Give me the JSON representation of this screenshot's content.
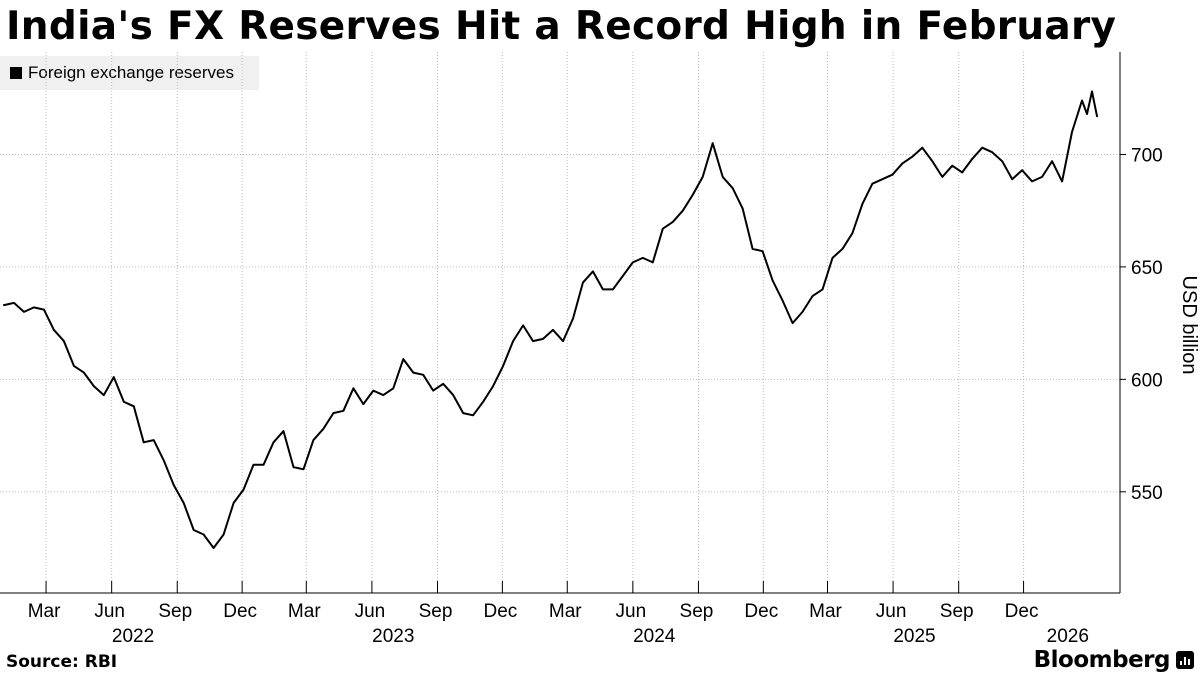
{
  "title": "India's FX Reserves Hit a Record High in February",
  "legend": {
    "label": "Foreign exchange reserves"
  },
  "source": "Source: RBI",
  "brand": "Bloomberg",
  "colors": {
    "line": "#000000",
    "grid": "#bdbdbd",
    "legend_bg": "#f0f0f0"
  },
  "chart_data": {
    "type": "line",
    "ylabel": "USD billion",
    "ylim": [
      505,
      750
    ],
    "yticks": [
      550,
      600,
      650,
      700
    ],
    "grid": true,
    "legend_position": "top-left",
    "month_ticks": [
      {
        "label": "Mar",
        "x": "2022-03-01"
      },
      {
        "label": "Jun",
        "x": "2022-06-01"
      },
      {
        "label": "Sep",
        "x": "2022-09-01"
      },
      {
        "label": "Dec",
        "x": "2022-12-01"
      },
      {
        "label": "Mar",
        "x": "2023-03-01"
      },
      {
        "label": "Jun",
        "x": "2023-06-01"
      },
      {
        "label": "Sep",
        "x": "2023-09-01"
      },
      {
        "label": "Dec",
        "x": "2023-12-01"
      },
      {
        "label": "Mar",
        "x": "2024-03-01"
      },
      {
        "label": "Jun",
        "x": "2024-06-01"
      },
      {
        "label": "Sep",
        "x": "2024-09-01"
      },
      {
        "label": "Dec",
        "x": "2024-12-01"
      },
      {
        "label": "Mar",
        "x": "2025-03-01"
      },
      {
        "label": "Jun",
        "x": "2025-06-01"
      },
      {
        "label": "Sep",
        "x": "2025-09-01"
      },
      {
        "label": "Dec",
        "x": "2025-12-01"
      }
    ],
    "year_ticks": [
      {
        "label": "2022",
        "x": "2022-07-01"
      },
      {
        "label": "2023",
        "x": "2023-07-01"
      },
      {
        "label": "2024",
        "x": "2024-07-01"
      },
      {
        "label": "2025",
        "x": "2025-07-01"
      },
      {
        "label": "2026",
        "x": "2026-02-01"
      }
    ],
    "series": [
      {
        "values": [
          [
            "2022-01-01",
            633
          ],
          [
            "2022-01-15",
            634
          ],
          [
            "2022-01-29",
            630
          ],
          [
            "2022-02-12",
            632
          ],
          [
            "2022-02-26",
            631
          ],
          [
            "2022-03-12",
            622
          ],
          [
            "2022-03-26",
            617
          ],
          [
            "2022-04-09",
            606
          ],
          [
            "2022-04-23",
            603
          ],
          [
            "2022-05-07",
            597
          ],
          [
            "2022-05-21",
            593
          ],
          [
            "2022-06-04",
            601
          ],
          [
            "2022-06-18",
            590
          ],
          [
            "2022-07-02",
            588
          ],
          [
            "2022-07-16",
            572
          ],
          [
            "2022-07-30",
            573
          ],
          [
            "2022-08-13",
            564
          ],
          [
            "2022-08-27",
            553
          ],
          [
            "2022-09-10",
            545
          ],
          [
            "2022-09-24",
            533
          ],
          [
            "2022-10-08",
            531
          ],
          [
            "2022-10-22",
            525
          ],
          [
            "2022-11-05",
            531
          ],
          [
            "2022-11-19",
            545
          ],
          [
            "2022-12-03",
            551
          ],
          [
            "2022-12-17",
            562
          ],
          [
            "2022-12-31",
            562
          ],
          [
            "2023-01-14",
            572
          ],
          [
            "2023-01-28",
            577
          ],
          [
            "2023-02-11",
            561
          ],
          [
            "2023-02-25",
            560
          ],
          [
            "2023-03-11",
            573
          ],
          [
            "2023-03-25",
            578
          ],
          [
            "2023-04-08",
            585
          ],
          [
            "2023-04-22",
            586
          ],
          [
            "2023-05-06",
            596
          ],
          [
            "2023-05-20",
            589
          ],
          [
            "2023-06-03",
            595
          ],
          [
            "2023-06-17",
            593
          ],
          [
            "2023-07-01",
            596
          ],
          [
            "2023-07-15",
            609
          ],
          [
            "2023-07-29",
            603
          ],
          [
            "2023-08-12",
            602
          ],
          [
            "2023-08-26",
            595
          ],
          [
            "2023-09-09",
            598
          ],
          [
            "2023-09-23",
            593
          ],
          [
            "2023-10-07",
            585
          ],
          [
            "2023-10-21",
            584
          ],
          [
            "2023-11-04",
            590
          ],
          [
            "2023-11-18",
            597
          ],
          [
            "2023-12-02",
            606
          ],
          [
            "2023-12-16",
            617
          ],
          [
            "2023-12-30",
            624
          ],
          [
            "2024-01-13",
            617
          ],
          [
            "2024-01-27",
            618
          ],
          [
            "2024-02-10",
            622
          ],
          [
            "2024-02-24",
            617
          ],
          [
            "2024-03-09",
            627
          ],
          [
            "2024-03-23",
            643
          ],
          [
            "2024-04-06",
            648
          ],
          [
            "2024-04-20",
            640
          ],
          [
            "2024-05-04",
            640
          ],
          [
            "2024-05-18",
            646
          ],
          [
            "2024-06-01",
            652
          ],
          [
            "2024-06-15",
            654
          ],
          [
            "2024-06-29",
            652
          ],
          [
            "2024-07-13",
            667
          ],
          [
            "2024-07-27",
            670
          ],
          [
            "2024-08-10",
            675
          ],
          [
            "2024-08-24",
            682
          ],
          [
            "2024-09-07",
            690
          ],
          [
            "2024-09-21",
            705
          ],
          [
            "2024-10-05",
            690
          ],
          [
            "2024-10-19",
            685
          ],
          [
            "2024-11-02",
            676
          ],
          [
            "2024-11-16",
            658
          ],
          [
            "2024-11-30",
            657
          ],
          [
            "2024-12-14",
            644
          ],
          [
            "2024-12-28",
            635
          ],
          [
            "2025-01-11",
            625
          ],
          [
            "2025-01-25",
            630
          ],
          [
            "2025-02-08",
            637
          ],
          [
            "2025-02-22",
            640
          ],
          [
            "2025-03-08",
            654
          ],
          [
            "2025-03-22",
            658
          ],
          [
            "2025-04-05",
            665
          ],
          [
            "2025-04-19",
            678
          ],
          [
            "2025-05-03",
            687
          ],
          [
            "2025-05-17",
            689
          ],
          [
            "2025-05-31",
            691
          ],
          [
            "2025-06-14",
            696
          ],
          [
            "2025-06-28",
            699
          ],
          [
            "2025-07-12",
            703
          ],
          [
            "2025-07-26",
            697
          ],
          [
            "2025-08-09",
            690
          ],
          [
            "2025-08-23",
            695
          ],
          [
            "2025-09-06",
            692
          ],
          [
            "2025-09-20",
            698
          ],
          [
            "2025-10-04",
            703
          ],
          [
            "2025-10-18",
            701
          ],
          [
            "2025-11-01",
            697
          ],
          [
            "2025-11-15",
            689
          ],
          [
            "2025-11-29",
            693
          ],
          [
            "2025-12-13",
            688
          ],
          [
            "2025-12-27",
            690
          ],
          [
            "2026-01-10",
            697
          ],
          [
            "2026-01-24",
            688
          ],
          [
            "2026-02-07",
            710
          ],
          [
            "2026-02-21",
            724
          ],
          [
            "2026-02-28",
            718
          ],
          [
            "2026-03-07",
            728
          ],
          [
            "2026-03-14",
            717
          ]
        ]
      }
    ]
  }
}
